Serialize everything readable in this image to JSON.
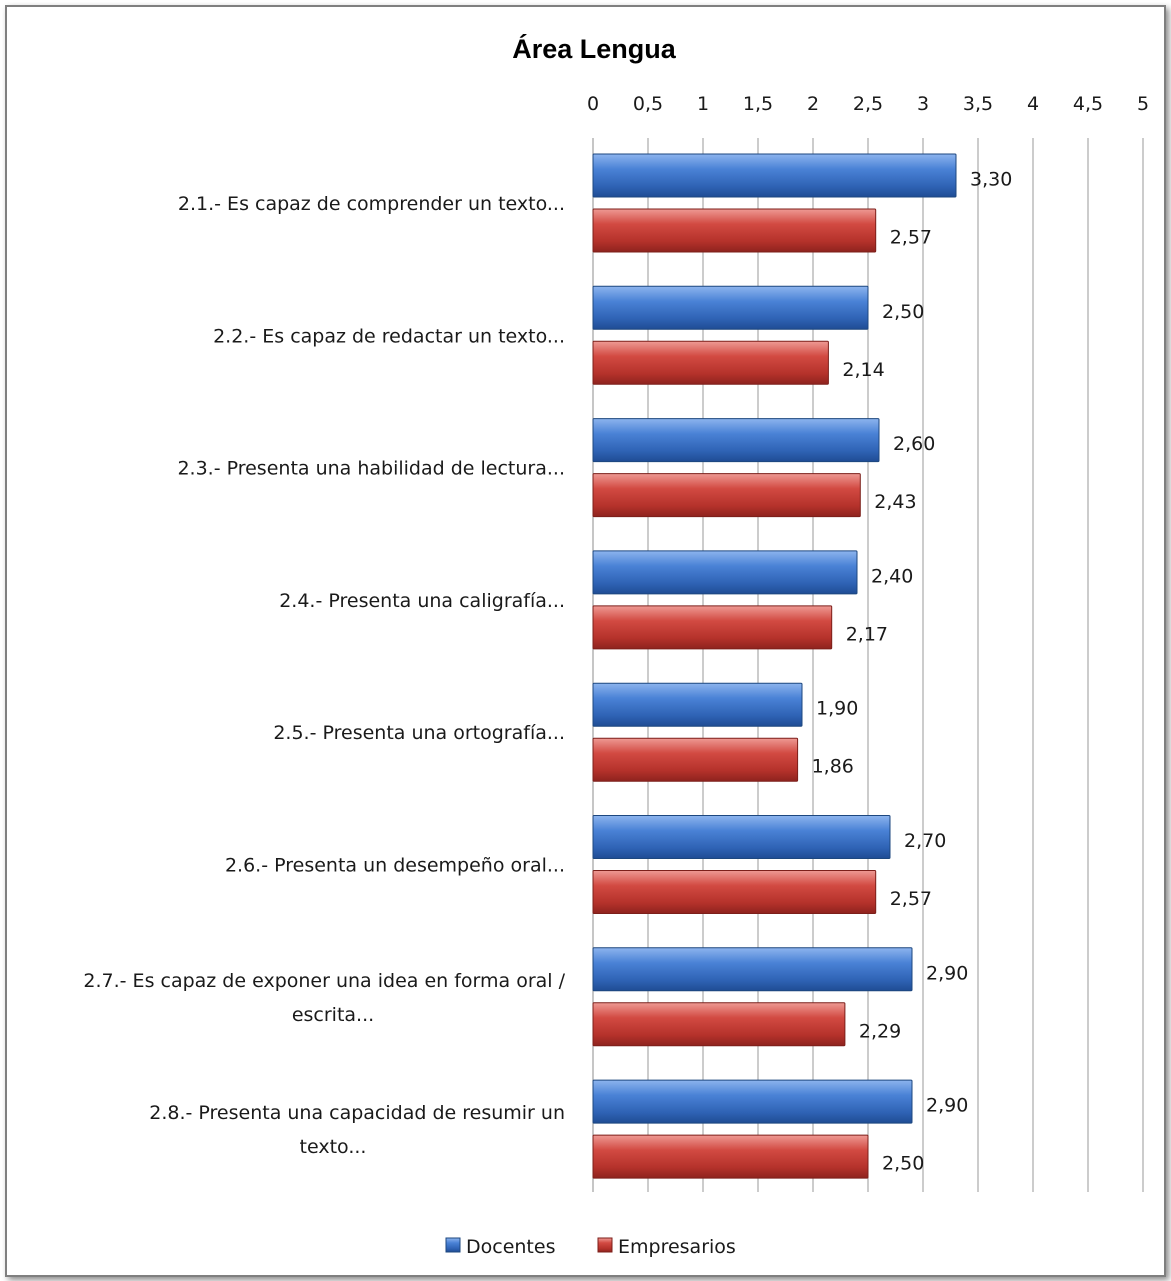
{
  "chart_data": {
    "type": "bar",
    "orientation": "horizontal",
    "title": "Área Lengua",
    "xlim": [
      0,
      5
    ],
    "ticks": [
      "0",
      "0,5",
      "1",
      "1,5",
      "2",
      "2,5",
      "3",
      "3,5",
      "4",
      "4,5",
      "5"
    ],
    "tick_values": [
      0,
      0.5,
      1,
      1.5,
      2,
      2.5,
      3,
      3.5,
      4,
      4.5,
      5
    ],
    "grid": "vertical",
    "legend_position": "bottom",
    "categories": [
      [
        "2.1.- Es capaz de comprender un texto..."
      ],
      [
        "2.2.- Es capaz de redactar un texto..."
      ],
      [
        "2.3.- Presenta una habilidad de lectura..."
      ],
      [
        "2.4.- Presenta una caligrafía..."
      ],
      [
        "2.5.- Presenta una ortografía..."
      ],
      [
        "2.6.- Presenta un desempeño oral..."
      ],
      [
        "2.7.- Es capaz de exponer una idea en forma oral /",
        "escrita..."
      ],
      [
        "2.8.- Presenta una capacidad de resumir un",
        "texto..."
      ]
    ],
    "series": [
      {
        "name": "Docentes",
        "color": "#3a6fc4",
        "values": [
          3.3,
          2.5,
          2.6,
          2.4,
          1.9,
          2.7,
          2.9,
          2.9
        ],
        "labels": [
          "3,30",
          "2,50",
          "2,60",
          "2,40",
          "1,90",
          "2,70",
          "2,90",
          "2,90"
        ]
      },
      {
        "name": "Empresarios",
        "color": "#c0392b",
        "values": [
          2.57,
          2.14,
          2.43,
          2.17,
          1.86,
          2.57,
          2.29,
          2.5
        ],
        "labels": [
          "2,57",
          "2,14",
          "2,43",
          "2,17",
          "1,86",
          "2,57",
          "2,29",
          "2,50"
        ]
      }
    ]
  }
}
